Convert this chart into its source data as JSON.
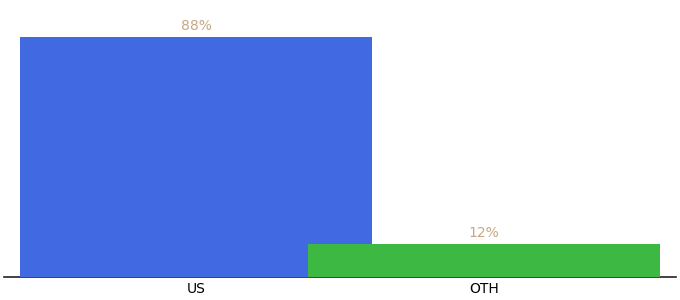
{
  "categories": [
    "US",
    "OTH"
  ],
  "values": [
    88,
    12
  ],
  "bar_colors": [
    "#4169e1",
    "#3cb843"
  ],
  "value_labels": [
    "88%",
    "12%"
  ],
  "background_color": "#ffffff",
  "ylim": [
    0,
    100
  ],
  "bar_width": 0.55,
  "label_fontsize": 10,
  "tick_fontsize": 10,
  "label_color": "#c8a882",
  "x_positions": [
    0.3,
    0.75
  ]
}
